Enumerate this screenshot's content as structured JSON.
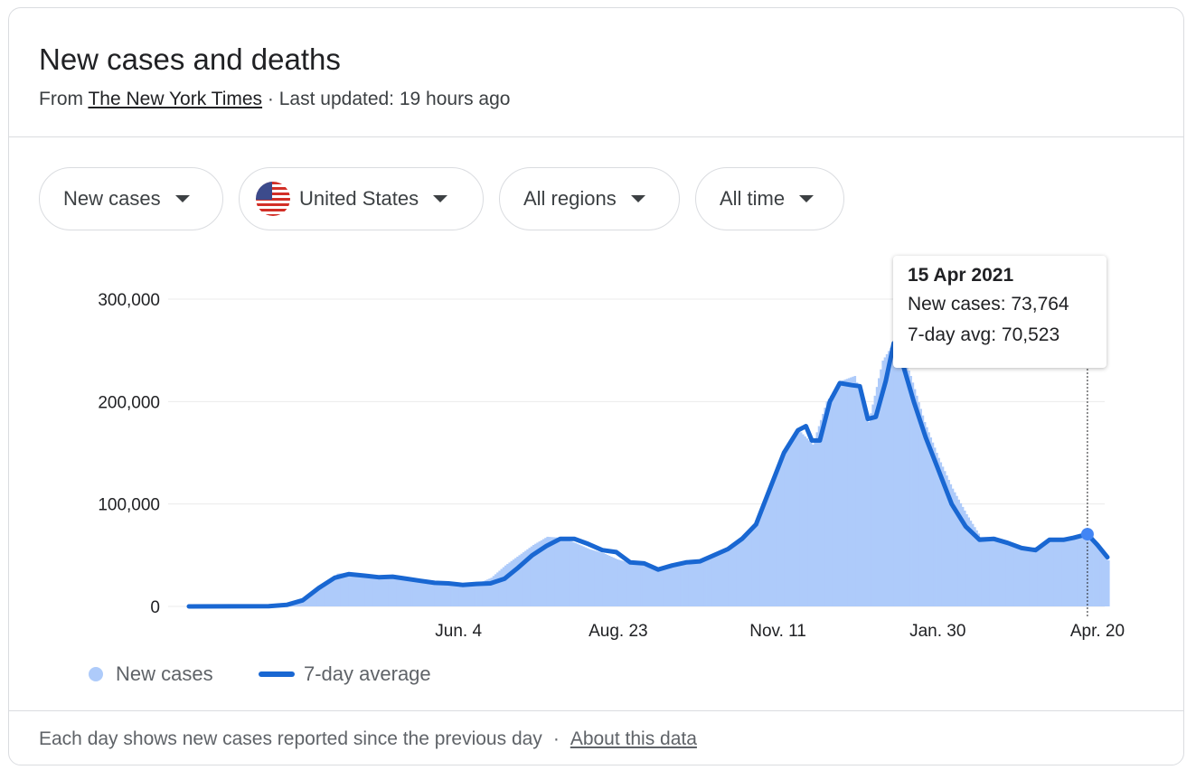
{
  "header": {
    "title": "New cases and deaths",
    "source_prefix": "From",
    "source_link": "The New York Times",
    "separator": "·",
    "updated": "Last updated: 19 hours ago"
  },
  "filters": {
    "metric": "New cases",
    "country": "United States",
    "region": "All regions",
    "range": "All time"
  },
  "tooltip": {
    "date": "15 Apr 2021",
    "new_cases": "New cases: 73,764",
    "avg": "7-day avg: 70,523"
  },
  "legend": {
    "bars_label": "New cases",
    "line_label": "7-day average"
  },
  "footer": {
    "note": "Each day shows new cases reported since the previous day",
    "separator": "·",
    "link": "About this data"
  },
  "colors": {
    "bar": "#aecbfa",
    "line": "#1967d2",
    "marker": "#4285f4",
    "grid": "#ebebeb"
  },
  "chart_data": {
    "type": "bar",
    "title": "",
    "ylim": [
      0,
      300000
    ],
    "y_ticks": [
      0,
      100000,
      200000,
      300000
    ],
    "y_tick_labels": [
      "0",
      "100,000",
      "200,000",
      "300,000"
    ],
    "x_tick_labels": [
      "Jun. 4",
      "Aug. 23",
      "Nov. 11",
      "Jan. 30",
      "Apr. 20"
    ],
    "x_tick_dates": [
      "2020-06-04",
      "2020-08-23",
      "2020-11-11",
      "2021-01-30",
      "2021-04-20"
    ],
    "x_range": [
      "2020-01-21",
      "2021-04-25"
    ],
    "grid": true,
    "legend_position": "bottom-left",
    "highlight": {
      "date": "2021-04-15",
      "new_cases": 73764,
      "avg_7day": 70523
    },
    "series": [
      {
        "name": "New cases",
        "kind": "bars",
        "points": [
          [
            "2020-01-21",
            0
          ],
          [
            "2020-03-01",
            0
          ],
          [
            "2020-03-12",
            1500
          ],
          [
            "2020-03-20",
            8000
          ],
          [
            "2020-03-28",
            20000
          ],
          [
            "2020-04-04",
            32000
          ],
          [
            "2020-04-10",
            33000
          ],
          [
            "2020-04-18",
            30000
          ],
          [
            "2020-04-25",
            29000
          ],
          [
            "2020-05-02",
            30000
          ],
          [
            "2020-05-09",
            27000
          ],
          [
            "2020-05-16",
            25000
          ],
          [
            "2020-05-23",
            23000
          ],
          [
            "2020-05-30",
            22000
          ],
          [
            "2020-06-06",
            22000
          ],
          [
            "2020-06-13",
            22000
          ],
          [
            "2020-06-20",
            28000
          ],
          [
            "2020-06-27",
            40000
          ],
          [
            "2020-07-04",
            50000
          ],
          [
            "2020-07-11",
            60000
          ],
          [
            "2020-07-18",
            68000
          ],
          [
            "2020-07-25",
            67000
          ],
          [
            "2020-08-01",
            62000
          ],
          [
            "2020-08-08",
            56000
          ],
          [
            "2020-08-15",
            52000
          ],
          [
            "2020-08-22",
            46000
          ],
          [
            "2020-08-29",
            42000
          ],
          [
            "2020-09-05",
            41000
          ],
          [
            "2020-09-12",
            38000
          ],
          [
            "2020-09-19",
            42000
          ],
          [
            "2020-09-26",
            44000
          ],
          [
            "2020-10-03",
            46000
          ],
          [
            "2020-10-10",
            52000
          ],
          [
            "2020-10-17",
            58000
          ],
          [
            "2020-10-24",
            68000
          ],
          [
            "2020-10-31",
            82000
          ],
          [
            "2020-11-07",
            115000
          ],
          [
            "2020-11-14",
            150000
          ],
          [
            "2020-11-21",
            172000
          ],
          [
            "2020-11-28",
            158000
          ],
          [
            "2020-12-05",
            200000
          ],
          [
            "2020-12-12",
            220000
          ],
          [
            "2020-12-19",
            225000
          ],
          [
            "2020-12-26",
            180000
          ],
          [
            "2021-01-02",
            240000
          ],
          [
            "2021-01-09",
            262000
          ],
          [
            "2021-01-16",
            225000
          ],
          [
            "2021-01-23",
            180000
          ],
          [
            "2021-01-30",
            145000
          ],
          [
            "2021-02-06",
            115000
          ],
          [
            "2021-02-13",
            90000
          ],
          [
            "2021-02-20",
            68000
          ],
          [
            "2021-02-27",
            68000
          ],
          [
            "2021-03-06",
            62000
          ],
          [
            "2021-03-13",
            56000
          ],
          [
            "2021-03-20",
            58000
          ],
          [
            "2021-03-27",
            66000
          ],
          [
            "2021-04-03",
            67000
          ],
          [
            "2021-04-10",
            70000
          ],
          [
            "2021-04-15",
            73764
          ],
          [
            "2021-04-20",
            58000
          ],
          [
            "2021-04-25",
            45000
          ]
        ]
      },
      {
        "name": "7-day average",
        "kind": "line",
        "points": [
          [
            "2020-01-21",
            0
          ],
          [
            "2020-03-01",
            200
          ],
          [
            "2020-03-10",
            1500
          ],
          [
            "2020-03-18",
            6000
          ],
          [
            "2020-03-26",
            18000
          ],
          [
            "2020-04-03",
            28000
          ],
          [
            "2020-04-10",
            31500
          ],
          [
            "2020-04-18",
            30000
          ],
          [
            "2020-04-25",
            28500
          ],
          [
            "2020-05-02",
            29000
          ],
          [
            "2020-05-09",
            27000
          ],
          [
            "2020-05-16",
            25000
          ],
          [
            "2020-05-23",
            23000
          ],
          [
            "2020-05-30",
            22500
          ],
          [
            "2020-06-06",
            21000
          ],
          [
            "2020-06-13",
            22000
          ],
          [
            "2020-06-20",
            22500
          ],
          [
            "2020-06-27",
            27000
          ],
          [
            "2020-07-04",
            38000
          ],
          [
            "2020-07-11",
            50000
          ],
          [
            "2020-07-18",
            59000
          ],
          [
            "2020-07-25",
            66000
          ],
          [
            "2020-08-01",
            66000
          ],
          [
            "2020-08-08",
            61000
          ],
          [
            "2020-08-15",
            55000
          ],
          [
            "2020-08-22",
            53000
          ],
          [
            "2020-08-29",
            43000
          ],
          [
            "2020-09-05",
            42000
          ],
          [
            "2020-09-12",
            36000
          ],
          [
            "2020-09-19",
            40000
          ],
          [
            "2020-09-26",
            43000
          ],
          [
            "2020-10-03",
            44000
          ],
          [
            "2020-10-10",
            50000
          ],
          [
            "2020-10-17",
            56000
          ],
          [
            "2020-10-24",
            66000
          ],
          [
            "2020-10-31",
            80000
          ],
          [
            "2020-11-07",
            115000
          ],
          [
            "2020-11-14",
            150000
          ],
          [
            "2020-11-21",
            172000
          ],
          [
            "2020-11-25",
            176000
          ],
          [
            "2020-11-28",
            162000
          ],
          [
            "2020-12-02",
            162000
          ],
          [
            "2020-12-07",
            200000
          ],
          [
            "2020-12-12",
            218000
          ],
          [
            "2020-12-18",
            216000
          ],
          [
            "2020-12-22",
            215000
          ],
          [
            "2020-12-26",
            183000
          ],
          [
            "2020-12-30",
            185000
          ],
          [
            "2021-01-04",
            220000
          ],
          [
            "2021-01-08",
            257000
          ],
          [
            "2021-01-12",
            240000
          ],
          [
            "2021-01-18",
            200000
          ],
          [
            "2021-01-24",
            165000
          ],
          [
            "2021-01-30",
            135000
          ],
          [
            "2021-02-06",
            100000
          ],
          [
            "2021-02-13",
            78000
          ],
          [
            "2021-02-20",
            65000
          ],
          [
            "2021-02-27",
            66000
          ],
          [
            "2021-03-06",
            62000
          ],
          [
            "2021-03-13",
            57000
          ],
          [
            "2021-03-20",
            55000
          ],
          [
            "2021-03-27",
            65000
          ],
          [
            "2021-04-03",
            65000
          ],
          [
            "2021-04-08",
            67000
          ],
          [
            "2021-04-15",
            70523
          ],
          [
            "2021-04-20",
            60000
          ],
          [
            "2021-04-25",
            48000
          ]
        ]
      }
    ]
  }
}
